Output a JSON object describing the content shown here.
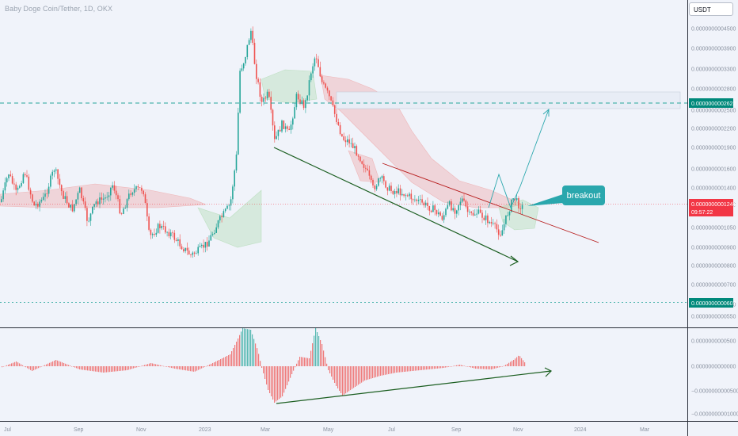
{
  "header": {
    "symbol_title": "Baby Doge Coin/Tether, 1D, OKX",
    "currency_label": "USDT"
  },
  "price_axis": {
    "ticks": [
      "0.0000000004500",
      "0.0000000003900",
      "0.0000000003300",
      "0.0000000002800",
      "0.0000000002500",
      "0.0000000002200",
      "0.0000000001900",
      "0.0000000001600",
      "0.0000000001400",
      "0.0000000001250",
      "0.0000000001050",
      "0.0000000000900",
      "0.0000000000800",
      "0.0000000000700",
      "0.0000000000600",
      "0.0000000000550"
    ],
    "resistance_badge": "0.0000000002622",
    "current_price_badge": "0.0000000001246",
    "countdown": "09:57:22",
    "support_badge": "0.0000000000607"
  },
  "oscillator_axis": {
    "ticks": [
      "0.0000000000500",
      "0.0000000000000",
      "−0.0000000000500",
      "−0.0000000001000"
    ]
  },
  "time_axis": {
    "labels": [
      "Jul",
      "Sep",
      "Nov",
      "2023",
      "Mar",
      "May",
      "Jul",
      "Sep",
      "Nov",
      "2024",
      "Mar"
    ]
  },
  "annotation": {
    "callout_text": "breakout"
  },
  "colors": {
    "up_candle": "#26a69a",
    "down_candle": "#ef5350",
    "resistance_line": "#26a69a",
    "cloud_bull": "#a5d6a7",
    "cloud_bear": "#ef9a9a",
    "trend_support": "#1b5e20",
    "trend_resistance": "#b71c1c",
    "callout": "#2aa7ad",
    "price_badge": "#f23645",
    "level_badge": "#00897b"
  }
}
